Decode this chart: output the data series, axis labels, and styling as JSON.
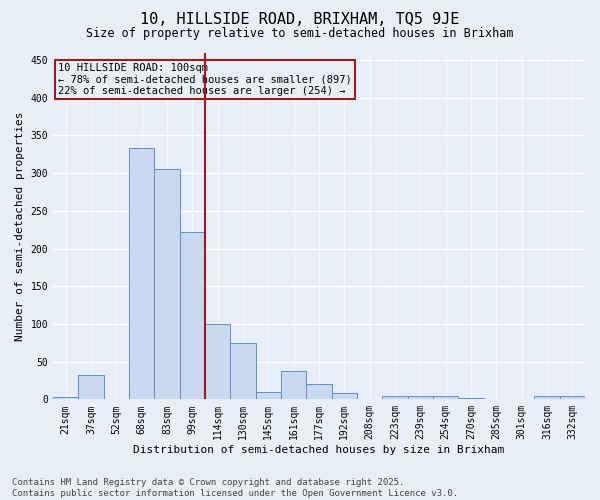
{
  "title": "10, HILLSIDE ROAD, BRIXHAM, TQ5 9JE",
  "subtitle": "Size of property relative to semi-detached houses in Brixham",
  "xlabel": "Distribution of semi-detached houses by size in Brixham",
  "ylabel": "Number of semi-detached properties",
  "categories": [
    "21sqm",
    "37sqm",
    "52sqm",
    "68sqm",
    "83sqm",
    "99sqm",
    "114sqm",
    "130sqm",
    "145sqm",
    "161sqm",
    "177sqm",
    "192sqm",
    "208sqm",
    "223sqm",
    "239sqm",
    "254sqm",
    "270sqm",
    "285sqm",
    "301sqm",
    "316sqm",
    "332sqm"
  ],
  "values": [
    3,
    32,
    1,
    333,
    305,
    222,
    100,
    75,
    10,
    38,
    20,
    9,
    1,
    4,
    4,
    4,
    2,
    1,
    1,
    5,
    4
  ],
  "bar_color": "#cad9ef",
  "bar_edge_color": "#5b8fc9",
  "vline_color": "#9b1b1b",
  "annotation_title": "10 HILLSIDE ROAD: 100sqm",
  "annotation_line1": "← 78% of semi-detached houses are smaller (897)",
  "annotation_line2": "22% of semi-detached houses are larger (254) →",
  "annotation_box_color": "#9b1b1b",
  "ylim": [
    0,
    460
  ],
  "yticks": [
    0,
    50,
    100,
    150,
    200,
    250,
    300,
    350,
    400,
    450
  ],
  "footer_line1": "Contains HM Land Registry data © Crown copyright and database right 2025.",
  "footer_line2": "Contains public sector information licensed under the Open Government Licence v3.0.",
  "bg_color": "#e8eef8",
  "grid_color": "#ffffff",
  "title_fontsize": 11,
  "subtitle_fontsize": 8.5,
  "axis_label_fontsize": 8,
  "tick_fontsize": 7,
  "footer_fontsize": 6.5,
  "annotation_fontsize": 7.5
}
